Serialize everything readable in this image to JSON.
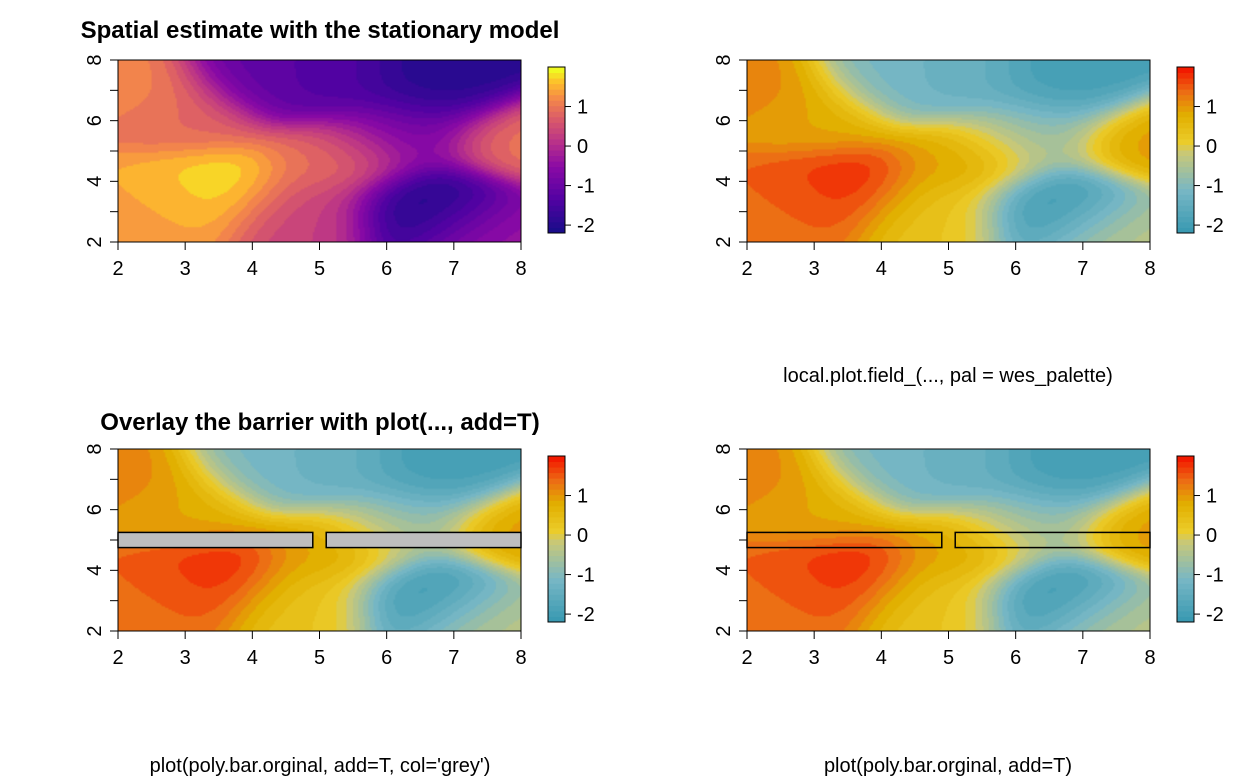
{
  "chart_data": [
    {
      "type": "heatmap",
      "title": "Spatial estimate with the stationary model",
      "subtitle": "",
      "palette": "plasma",
      "xlim": [
        2,
        8
      ],
      "ylim": [
        2,
        8
      ],
      "x_ticks": [
        "2",
        "3",
        "4",
        "5",
        "6",
        "7",
        "8"
      ],
      "y_ticks": [
        "2",
        "4",
        "6",
        "8"
      ],
      "colorbar_ticks": [
        "-2",
        "-1",
        "0",
        "1"
      ],
      "colorbar_range": [
        -2.2,
        2.0
      ],
      "barrier": "none",
      "colors": {
        "low": "#1b0c8a",
        "mid": "#cc4778",
        "high": "#f0f921"
      }
    },
    {
      "type": "heatmap",
      "title": "",
      "subtitle": "local.plot.field_(..., pal = wes_palette)",
      "palette": "wes_palette",
      "xlim": [
        2,
        8
      ],
      "ylim": [
        2,
        8
      ],
      "x_ticks": [
        "2",
        "3",
        "4",
        "5",
        "6",
        "7",
        "8"
      ],
      "y_ticks": [
        "2",
        "4",
        "6",
        "8"
      ],
      "colorbar_ticks": [
        "-2",
        "-1",
        "0",
        "1"
      ],
      "colorbar_range": [
        -2.2,
        2.0
      ],
      "barrier": "none",
      "colors": {
        "low": "#3b9ab2",
        "mid": "#ebcc2a",
        "high": "#f21a00"
      }
    },
    {
      "type": "heatmap",
      "title": "Overlay the barrier with plot(..., add=T)",
      "subtitle": "plot(poly.bar.orginal, add=T, col='grey')",
      "palette": "wes_palette",
      "xlim": [
        2,
        8
      ],
      "ylim": [
        2,
        8
      ],
      "x_ticks": [
        "2",
        "3",
        "4",
        "5",
        "6",
        "7",
        "8"
      ],
      "y_ticks": [
        "2",
        "4",
        "6",
        "8"
      ],
      "colorbar_ticks": [
        "-2",
        "-1",
        "0",
        "1"
      ],
      "colorbar_range": [
        -2.2,
        2.0
      ],
      "barrier": "grey",
      "barrier_polygons": [
        {
          "x": [
            2,
            4.9
          ],
          "y": [
            4.75,
            5.25
          ]
        },
        {
          "x": [
            5.1,
            8
          ],
          "y": [
            4.75,
            5.25
          ]
        }
      ],
      "colors": {
        "low": "#3b9ab2",
        "mid": "#ebcc2a",
        "high": "#f21a00",
        "barrier_fill": "#bebebe"
      }
    },
    {
      "type": "heatmap",
      "title": "",
      "subtitle": "plot(poly.bar.orginal, add=T)",
      "palette": "wes_palette",
      "xlim": [
        2,
        8
      ],
      "ylim": [
        2,
        8
      ],
      "x_ticks": [
        "2",
        "3",
        "4",
        "5",
        "6",
        "7",
        "8"
      ],
      "y_ticks": [
        "2",
        "4",
        "6",
        "8"
      ],
      "colorbar_ticks": [
        "-2",
        "-1",
        "0",
        "1"
      ],
      "colorbar_range": [
        -2.2,
        2.0
      ],
      "barrier": "outline",
      "barrier_polygons": [
        {
          "x": [
            2,
            4.9
          ],
          "y": [
            4.75,
            5.25
          ]
        },
        {
          "x": [
            5.1,
            8
          ],
          "y": [
            4.75,
            5.25
          ]
        }
      ],
      "colors": {
        "low": "#3b9ab2",
        "mid": "#ebcc2a",
        "high": "#f21a00"
      }
    }
  ],
  "field_peaks": [
    {
      "x": 2.3,
      "y": 2.8,
      "v": 1.3
    },
    {
      "x": 3.4,
      "y": 3.8,
      "v": 2.0
    },
    {
      "x": 2.6,
      "y": 3.6,
      "v": 1.4
    },
    {
      "x": 2.2,
      "y": 7.0,
      "v": 1.2
    },
    {
      "x": 3.0,
      "y": 6.0,
      "v": 0.8
    },
    {
      "x": 5.3,
      "y": 4.8,
      "v": 1.0
    },
    {
      "x": 8.0,
      "y": 5.3,
      "v": 1.0
    },
    {
      "x": 4.7,
      "y": 3.0,
      "v": 0.3
    },
    {
      "x": 6.7,
      "y": 3.2,
      "v": -2.2
    },
    {
      "x": 6.8,
      "y": 7.2,
      "v": -2.0
    },
    {
      "x": 5.0,
      "y": 7.4,
      "v": -1.4
    },
    {
      "x": 4.2,
      "y": 7.5,
      "v": -1.1
    },
    {
      "x": 6.2,
      "y": 5.6,
      "v": -0.9
    },
    {
      "x": 7.6,
      "y": 2.4,
      "v": -0.3
    }
  ]
}
